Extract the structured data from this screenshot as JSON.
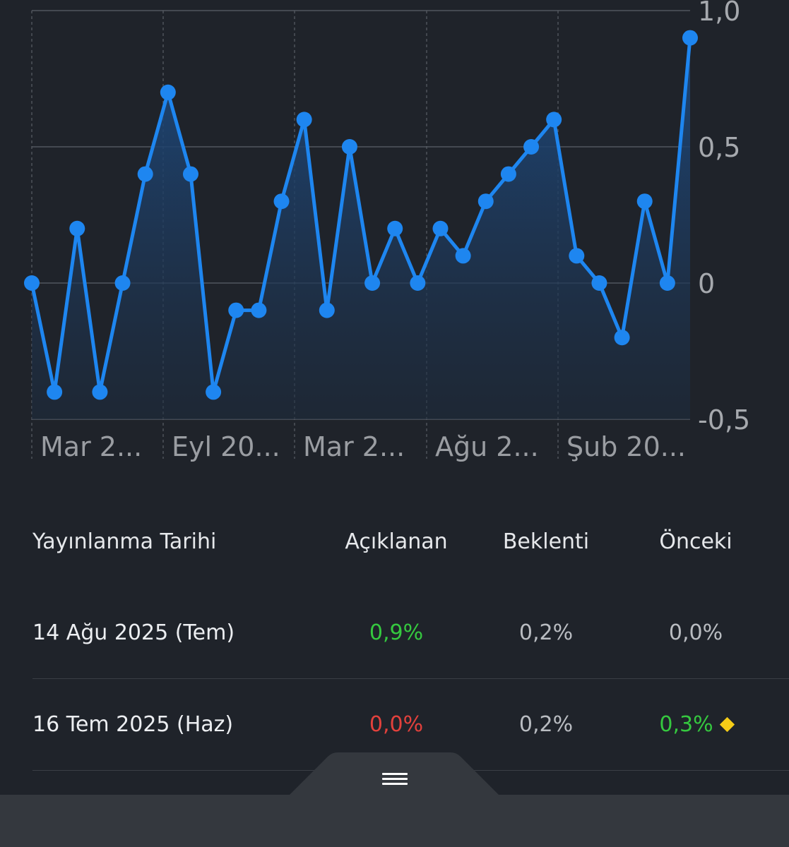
{
  "chart_data": {
    "type": "line",
    "filled_area": true,
    "line_color": "#1e86f0",
    "fill_color": "#1d4a80",
    "values": [
      0,
      -0.4,
      0.2,
      -0.4,
      0,
      0.4,
      0.7,
      0.4,
      -0.4,
      -0.1,
      -0.1,
      0.3,
      0.6,
      -0.1,
      0.5,
      0,
      0.2,
      0,
      0.2,
      0.1,
      0.3,
      0.4,
      0.5,
      0.6,
      0.1,
      0,
      -0.2,
      0.3,
      0,
      0.9
    ],
    "ylim": [
      -0.5,
      1.0
    ],
    "yticks": [
      "1,0",
      "0,5",
      "0",
      "-0,5"
    ],
    "xtick_labels": [
      "Mar 2...",
      "Eyl 20...",
      "Mar 2...",
      "Ağu 2...",
      "Şub 20..."
    ],
    "grid": true
  },
  "table": {
    "headers": {
      "date": "Yayınlanma Tarihi",
      "actual": "Açıklanan",
      "expected": "Beklenti",
      "previous": "Önceki"
    },
    "rows": [
      {
        "date": "14 Ağu 2025 (Tem)",
        "actual": "0,9%",
        "actual_color": "#35c83f",
        "expected": "0,2%",
        "previous": "0,0%",
        "previous_color": "#b9bcc1",
        "revised": false
      },
      {
        "date": "16 Tem 2025 (Haz)",
        "actual": "0,0%",
        "actual_color": "#e2413c",
        "expected": "0,2%",
        "previous": "0,3%",
        "previous_color": "#35c83f",
        "revised": true
      }
    ]
  },
  "drawer": {
    "handle_icon": "menu-lines-icon"
  }
}
